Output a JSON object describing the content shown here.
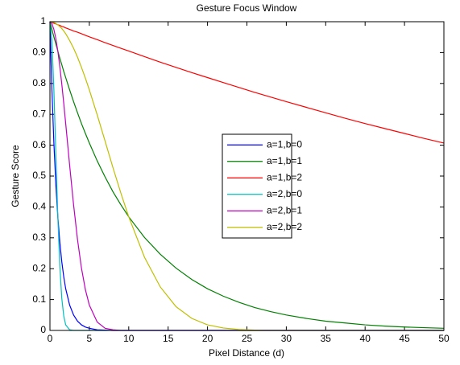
{
  "chart_data": {
    "type": "line",
    "title": "Gesture Focus Window",
    "x_label": "Pixel Distance (d)",
    "y_label": "Gesture Score",
    "x": [
      0,
      0.25,
      0.5,
      0.75,
      1,
      1.25,
      1.5,
      1.75,
      2,
      2.5,
      3,
      3.5,
      4,
      4.5,
      5,
      6,
      7,
      8,
      9,
      10,
      12,
      14,
      16,
      18,
      20,
      22,
      24,
      26,
      28,
      30,
      32.5,
      35,
      37.5,
      40,
      42.5,
      45,
      47.5,
      50
    ],
    "series": [
      {
        "name": "a=1,b=0",
        "color": "#0000ff",
        "values": [
          1,
          0.779,
          0.607,
          0.472,
          0.368,
          0.287,
          0.223,
          0.174,
          0.135,
          0.082,
          0.05,
          0.03,
          0.018,
          0.011,
          0.007,
          0.002,
          0.001,
          0,
          0,
          0,
          0,
          0,
          0,
          0,
          0,
          0,
          0,
          0,
          0,
          0,
          0,
          0,
          0,
          0,
          0,
          0,
          0,
          0
        ]
      },
      {
        "name": "a=1,b=1",
        "color": "#008000",
        "values": [
          1,
          0.975,
          0.951,
          0.928,
          0.905,
          0.882,
          0.861,
          0.839,
          0.819,
          0.779,
          0.741,
          0.705,
          0.67,
          0.638,
          0.607,
          0.549,
          0.497,
          0.449,
          0.407,
          0.368,
          0.301,
          0.247,
          0.202,
          0.165,
          0.135,
          0.111,
          0.091,
          0.074,
          0.061,
          0.05,
          0.039,
          0.03,
          0.024,
          0.018,
          0.014,
          0.011,
          0.009,
          0.007
        ]
      },
      {
        "name": "a=1,b=2",
        "color": "#ff0000",
        "values": [
          1,
          0.998,
          0.995,
          0.993,
          0.99,
          0.988,
          0.985,
          0.983,
          0.98,
          0.975,
          0.97,
          0.966,
          0.961,
          0.956,
          0.951,
          0.942,
          0.932,
          0.923,
          0.914,
          0.905,
          0.887,
          0.869,
          0.852,
          0.835,
          0.819,
          0.803,
          0.787,
          0.771,
          0.756,
          0.741,
          0.723,
          0.705,
          0.687,
          0.67,
          0.654,
          0.638,
          0.622,
          0.607
        ]
      },
      {
        "name": "a=2,b=0",
        "color": "#00bfbf",
        "values": [
          1,
          0.939,
          0.779,
          0.57,
          0.368,
          0.21,
          0.105,
          0.047,
          0.018,
          0.002,
          0,
          0,
          0,
          0,
          0,
          0,
          0,
          0,
          0,
          0,
          0,
          0,
          0,
          0,
          0,
          0,
          0,
          0,
          0,
          0,
          0,
          0,
          0,
          0,
          0,
          0,
          0,
          0
        ]
      },
      {
        "name": "a=2,b=1",
        "color": "#bf00bf",
        "values": [
          1,
          0.994,
          0.975,
          0.945,
          0.905,
          0.855,
          0.799,
          0.736,
          0.67,
          0.535,
          0.407,
          0.294,
          0.202,
          0.132,
          0.082,
          0.027,
          0.007,
          0.002,
          0,
          0,
          0,
          0,
          0,
          0,
          0,
          0,
          0,
          0,
          0,
          0,
          0,
          0,
          0,
          0,
          0,
          0,
          0,
          0
        ]
      },
      {
        "name": "a=2,b=2",
        "color": "#bfbf00",
        "values": [
          1,
          0.999,
          0.998,
          0.994,
          0.99,
          0.984,
          0.978,
          0.97,
          0.961,
          0.939,
          0.914,
          0.885,
          0.852,
          0.817,
          0.779,
          0.698,
          0.613,
          0.527,
          0.445,
          0.368,
          0.237,
          0.141,
          0.077,
          0.039,
          0.018,
          0.008,
          0.003,
          0.001,
          0,
          0,
          0,
          0,
          0,
          0,
          0,
          0,
          0,
          0
        ]
      }
    ],
    "xlim": [
      0,
      50
    ],
    "ylim": [
      0,
      1
    ],
    "xticks": [
      0,
      5,
      10,
      15,
      20,
      25,
      30,
      35,
      40,
      45,
      50
    ],
    "yticks": [
      0,
      0.1,
      0.2,
      0.3,
      0.4,
      0.5,
      0.6,
      0.7,
      0.8,
      0.9,
      1
    ],
    "legend": "center"
  }
}
